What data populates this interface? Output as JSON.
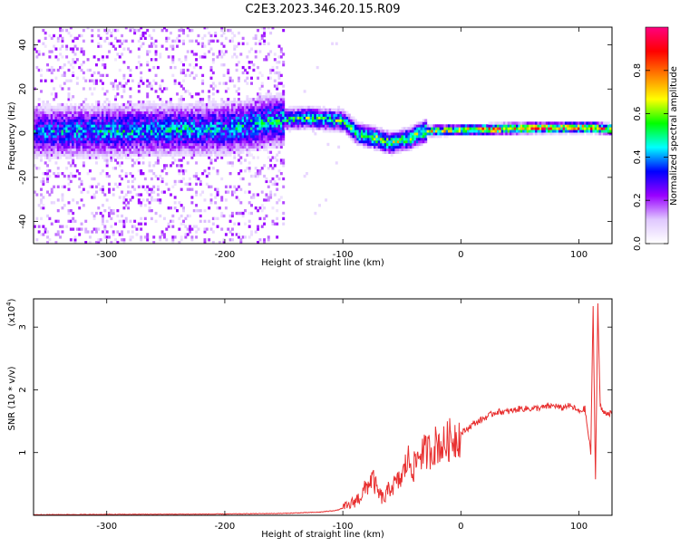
{
  "title": "C2E3.2023.346.20.15.R09",
  "chart_data": [
    {
      "type": "heatmap",
      "xlabel": "Height of straight line (km)",
      "ylabel": "Frequency (Hz)",
      "xlim": [
        -362,
        128
      ],
      "ylim": [
        -50,
        48
      ],
      "x_ticks": [
        -300,
        -200,
        -100,
        0,
        100
      ],
      "y_ticks": [
        -40,
        -20,
        0,
        20,
        40
      ],
      "grid": false,
      "colorbar": {
        "label": "Normalized spectral amplitude",
        "range": [
          0,
          1
        ],
        "ticks": [
          0.0,
          0.2,
          0.4,
          0.6,
          0.8
        ],
        "colormap": [
          "#ffffff",
          "#e0c8ff",
          "#9900ff",
          "#0000ff",
          "#00ffff",
          "#00ff00",
          "#ffff00",
          "#ff8000",
          "#ff0000",
          "#ff0080"
        ]
      },
      "ridge": [
        {
          "x": -362,
          "f": 0.0,
          "a": 0.45
        },
        {
          "x": -300,
          "f": 0.5,
          "a": 0.5
        },
        {
          "x": -200,
          "f": 1.5,
          "a": 0.5
        },
        {
          "x": -155,
          "f": 5.5,
          "a": 0.55
        },
        {
          "x": -130,
          "f": 6.5,
          "a": 0.6
        },
        {
          "x": -100,
          "f": 5.0,
          "a": 0.6
        },
        {
          "x": -88,
          "f": -1.0,
          "a": 0.6
        },
        {
          "x": -75,
          "f": -2.5,
          "a": 0.7
        },
        {
          "x": -60,
          "f": -5.0,
          "a": 0.7
        },
        {
          "x": -45,
          "f": -3.0,
          "a": 0.7
        },
        {
          "x": -30,
          "f": 0.5,
          "a": 0.75
        },
        {
          "x": 0,
          "f": 1.0,
          "a": 0.85
        },
        {
          "x": 20,
          "f": 1.2,
          "a": 0.95
        },
        {
          "x": 60,
          "f": 1.8,
          "a": 0.95
        },
        {
          "x": 105,
          "f": 2.0,
          "a": 0.95
        },
        {
          "x": 112,
          "f": 2.0,
          "a": 0.9
        },
        {
          "x": 128,
          "f": 1.0,
          "a": 0.9
        }
      ]
    },
    {
      "type": "line",
      "xlabel": "Height of straight line (km)",
      "ylabel": "SNR (10 * v/v)",
      "y_multiplier": "(x10",
      "y_exponent": "4",
      "y_exponent_close": ")",
      "xlim": [
        -362,
        128
      ],
      "ylim": [
        0,
        3.45
      ],
      "x_ticks": [
        -300,
        -200,
        -100,
        0,
        100
      ],
      "y_ticks": [
        1,
        2,
        3
      ],
      "color": "#e83030",
      "series": [
        {
          "x": [
            -362,
            -200,
            -150,
            -120,
            -105,
            -95,
            -85,
            -80,
            -75,
            -70,
            -65,
            -60,
            -55,
            -50,
            -45,
            -40,
            -35,
            -30,
            -25,
            -20,
            -15,
            -10,
            -5,
            0,
            10,
            20,
            30,
            40,
            50,
            60,
            70,
            80,
            85,
            90,
            95,
            100,
            105,
            110,
            112,
            114,
            116,
            118,
            120,
            128
          ],
          "y": [
            0.01,
            0.02,
            0.03,
            0.05,
            0.08,
            0.15,
            0.3,
            0.45,
            0.6,
            0.35,
            0.25,
            0.45,
            0.5,
            0.6,
            0.9,
            0.75,
            1.0,
            1.0,
            1.05,
            1.15,
            1.1,
            1.2,
            1.25,
            1.3,
            1.45,
            1.55,
            1.65,
            1.65,
            1.7,
            1.7,
            1.72,
            1.75,
            1.7,
            1.75,
            1.72,
            1.65,
            1.7,
            1.0,
            3.3,
            0.55,
            3.35,
            1.75,
            1.65,
            1.62
          ]
        }
      ]
    }
  ]
}
